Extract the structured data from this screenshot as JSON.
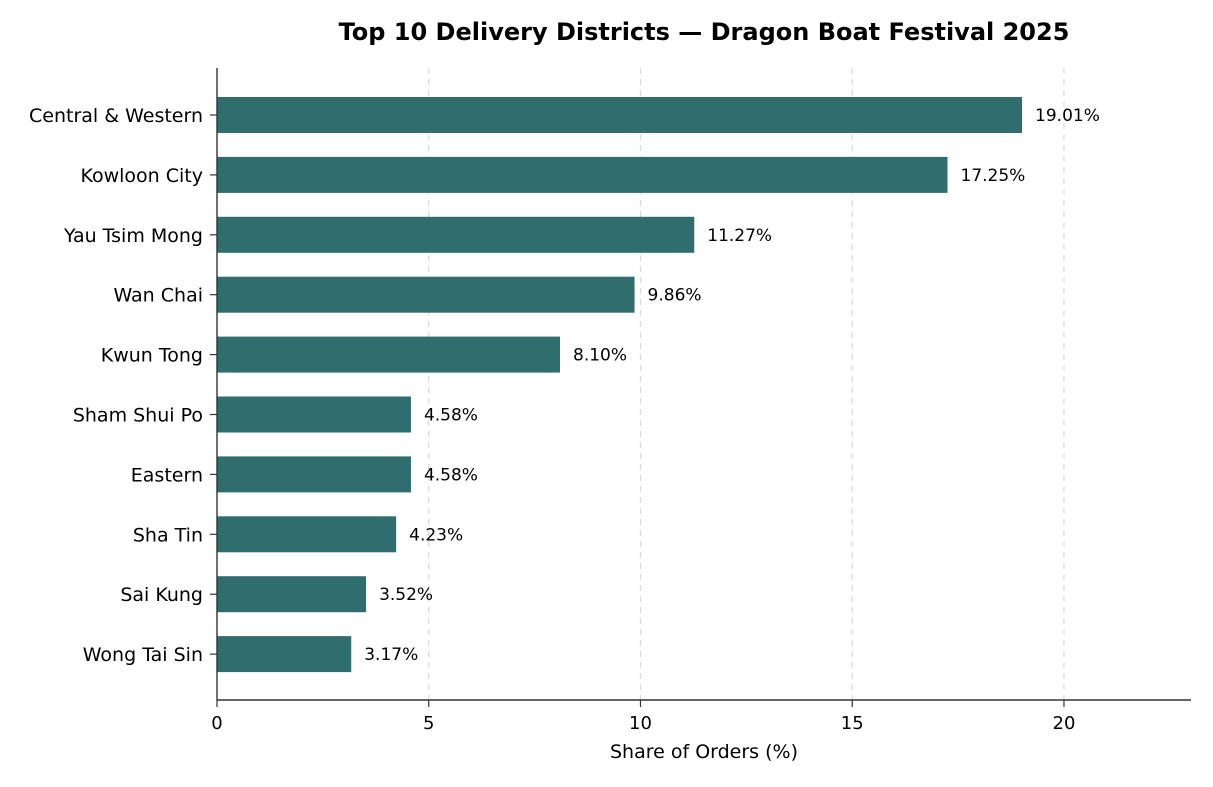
{
  "chart_data": {
    "type": "bar",
    "orientation": "horizontal",
    "title": "Top 10 Delivery Districts — Dragon Boat Festival 2025",
    "xlabel": "Share of Orders (%)",
    "ylabel": "",
    "xlim": [
      0,
      23
    ],
    "xticks": [
      0,
      5,
      10,
      15,
      20
    ],
    "grid": "x-dashed",
    "categories": [
      "Central & Western",
      "Kowloon City",
      "Yau Tsim Mong",
      "Wan Chai",
      "Kwun Tong",
      "Sham Shui Po",
      "Eastern",
      "Sha Tin",
      "Sai Kung",
      "Wong Tai Sin"
    ],
    "values": [
      19.01,
      17.25,
      11.27,
      9.86,
      8.1,
      4.58,
      4.58,
      4.23,
      3.52,
      3.17
    ],
    "data_labels": [
      "19.01%",
      "17.25%",
      "11.27%",
      "9.86%",
      "8.10%",
      "4.58%",
      "4.58%",
      "4.23%",
      "3.52%",
      "3.17%"
    ],
    "bar_color": "#2f6e6c"
  }
}
